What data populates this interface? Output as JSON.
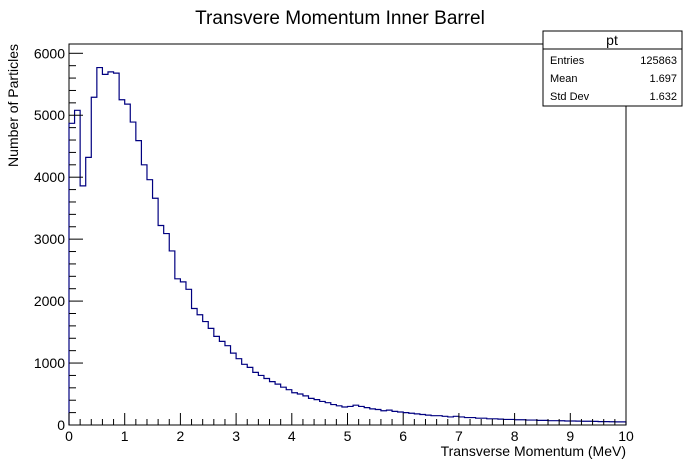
{
  "chart_data": {
    "type": "bar",
    "title": "Transvere Momentum Inner Barrel",
    "xlabel": "Transverse Momentum (MeV)",
    "ylabel": "Number of Particles",
    "xlim": [
      0,
      10
    ],
    "ylim": [
      0,
      6150
    ],
    "x_ticks": [
      "0",
      "1",
      "2",
      "3",
      "4",
      "5",
      "6",
      "7",
      "8",
      "9",
      "10"
    ],
    "y_ticks": [
      "0",
      "1000",
      "2000",
      "3000",
      "4000",
      "5000",
      "6000"
    ],
    "grid": false,
    "line_color": "#000080",
    "bin_width": 0.1,
    "bin_start": 0,
    "values": [
      4870,
      5080,
      3860,
      4320,
      5290,
      5770,
      5660,
      5700,
      5680,
      5250,
      5180,
      4890,
      4590,
      4200,
      3960,
      3660,
      3220,
      3090,
      2810,
      2360,
      2310,
      2190,
      1880,
      1780,
      1670,
      1560,
      1430,
      1350,
      1280,
      1160,
      1070,
      980,
      930,
      850,
      800,
      750,
      700,
      660,
      610,
      570,
      520,
      500,
      470,
      430,
      410,
      380,
      360,
      330,
      310,
      290,
      300,
      320,
      300,
      280,
      260,
      250,
      230,
      240,
      220,
      210,
      200,
      190,
      180,
      170,
      160,
      150,
      150,
      140,
      130,
      140,
      130,
      120,
      120,
      110,
      110,
      100,
      100,
      95,
      90,
      90,
      85,
      85,
      80,
      80,
      75,
      75,
      70,
      70,
      68,
      65,
      65,
      62,
      60,
      60,
      58,
      55,
      55,
      52,
      50,
      50
    ]
  },
  "stats_box": {
    "title": "pt",
    "rows": [
      {
        "label": "Entries",
        "value": "125863"
      },
      {
        "label": "Mean",
        "value": "1.697"
      },
      {
        "label": "Std Dev",
        "value": "1.632"
      }
    ]
  }
}
